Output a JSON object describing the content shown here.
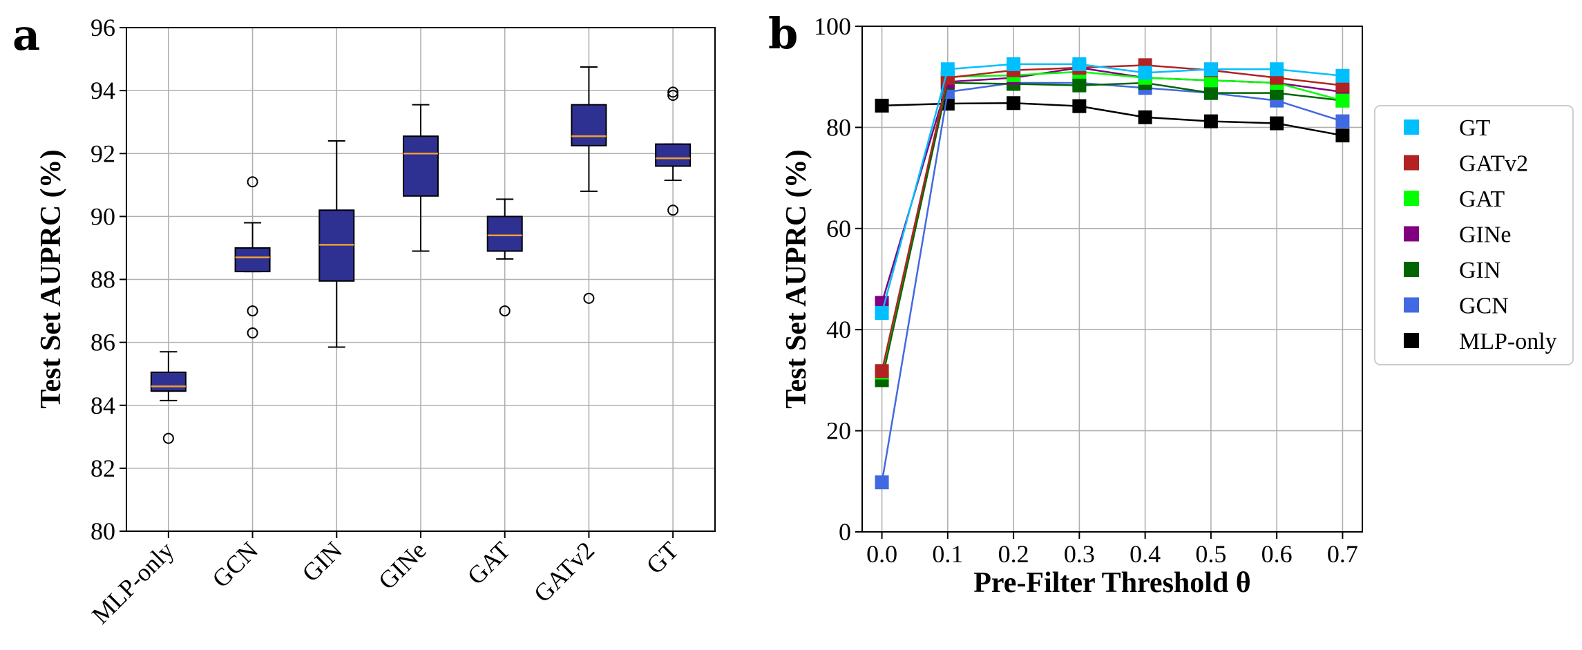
{
  "panels": {
    "a": {
      "letter": "a"
    },
    "b": {
      "letter": "b"
    }
  },
  "colors": {
    "box_fill": "#2e3192",
    "median": "#f0a030",
    "GT": "#00bfff",
    "GATv2": "#b22222",
    "GAT": "#00ff00",
    "GINe": "#800080",
    "GIN": "#006400",
    "GCN": "#4169e1",
    "MLP-only": "#000000"
  },
  "chart_data": [
    {
      "type": "box",
      "panel": "a",
      "ylabel": "Test Set AUPRC (%)",
      "xlabel": "",
      "ylim": [
        80,
        96
      ],
      "yticks": [
        80,
        82,
        84,
        86,
        88,
        90,
        92,
        94,
        96
      ],
      "grid": true,
      "categories": [
        "MLP-only",
        "GCN",
        "GIN",
        "GINe",
        "GAT",
        "GATv2",
        "GT"
      ],
      "boxes": [
        {
          "label": "MLP-only",
          "whislo": 84.15,
          "q1": 84.45,
          "med": 84.6,
          "q3": 85.05,
          "whishi": 85.7,
          "fliers": [
            82.95
          ]
        },
        {
          "label": "GCN",
          "whislo": 88.25,
          "q1": 88.25,
          "med": 88.7,
          "q3": 89.0,
          "whishi": 89.8,
          "fliers": [
            91.1,
            87.0,
            86.3
          ]
        },
        {
          "label": "GIN",
          "whislo": 85.85,
          "q1": 87.95,
          "med": 89.1,
          "q3": 90.2,
          "whishi": 92.4,
          "fliers": []
        },
        {
          "label": "GINe",
          "whislo": 88.9,
          "q1": 90.65,
          "med": 92.0,
          "q3": 92.55,
          "whishi": 93.55,
          "fliers": []
        },
        {
          "label": "GAT",
          "whislo": 88.65,
          "q1": 88.9,
          "med": 89.4,
          "q3": 90.0,
          "whishi": 90.55,
          "fliers": [
            87.0
          ]
        },
        {
          "label": "GATv2",
          "whislo": 90.8,
          "q1": 92.25,
          "med": 92.55,
          "q3": 93.55,
          "whishi": 94.75,
          "fliers": [
            87.4
          ]
        },
        {
          "label": "GT",
          "whislo": 91.15,
          "q1": 91.6,
          "med": 91.85,
          "q3": 92.3,
          "whishi": 92.3,
          "fliers": [
            93.95,
            93.85,
            90.2
          ]
        }
      ]
    },
    {
      "type": "line",
      "panel": "b",
      "xlabel": "Pre-Filter Threshold θ",
      "ylabel": "Test Set AUPRC (%)",
      "ylim": [
        0,
        100
      ],
      "xlim": [
        -0.03,
        0.73
      ],
      "yticks": [
        0,
        20,
        40,
        60,
        80,
        100
      ],
      "xticks": [
        0.0,
        0.1,
        0.2,
        0.3,
        0.4,
        0.5,
        0.6,
        0.7
      ],
      "xtick_labels": [
        "0.0",
        "0.1",
        "0.2",
        "0.3",
        "0.4",
        "0.5",
        "0.6",
        "0.7"
      ],
      "grid": true,
      "legend_position": "outside-right",
      "x": [
        0.0,
        0.1,
        0.2,
        0.3,
        0.4,
        0.5,
        0.6,
        0.7
      ],
      "series": [
        {
          "name": "MLP-only",
          "values": [
            84.3,
            84.7,
            84.8,
            84.2,
            82.0,
            81.2,
            80.8,
            78.4
          ]
        },
        {
          "name": "GCN",
          "values": [
            9.8,
            87.0,
            88.8,
            88.8,
            87.8,
            86.8,
            85.3,
            81.2
          ]
        },
        {
          "name": "GIN",
          "values": [
            30.0,
            88.8,
            88.6,
            88.3,
            88.8,
            86.8,
            86.8,
            85.3
          ]
        },
        {
          "name": "GINe",
          "values": [
            45.3,
            89.0,
            89.8,
            91.8,
            89.8,
            89.3,
            88.8,
            87.0
          ]
        },
        {
          "name": "GAT",
          "values": [
            31.5,
            90.0,
            90.3,
            91.0,
            89.8,
            89.3,
            88.8,
            85.3
          ]
        },
        {
          "name": "GATv2",
          "values": [
            31.8,
            89.8,
            91.3,
            91.8,
            92.3,
            91.3,
            89.8,
            88.3
          ]
        },
        {
          "name": "GT",
          "values": [
            43.3,
            91.5,
            92.5,
            92.5,
            90.8,
            91.5,
            91.5,
            90.2
          ]
        }
      ],
      "legend": [
        "GT",
        "GATv2",
        "GAT",
        "GINe",
        "GIN",
        "GCN",
        "MLP-only"
      ]
    }
  ]
}
